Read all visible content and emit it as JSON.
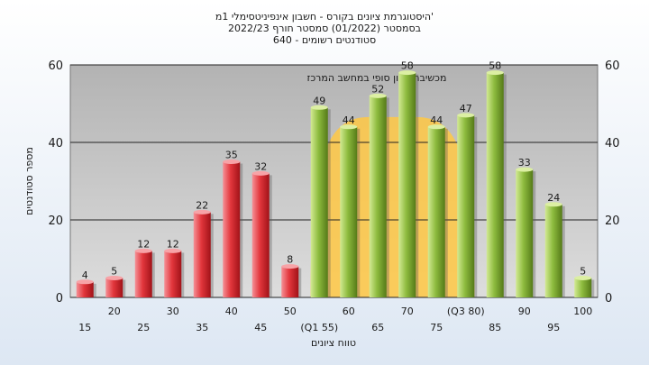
{
  "chart_data": {
    "type": "bar",
    "title_lines": [
      "היסטוגרמת ציונים בקורס - חשבון אינפיניטסימלי 1מ'",
      "בסמסטר  (01/2022)  סמסטר חורף  2022/23",
      "640 - סטודנטים רשומים"
    ],
    "annotation": "מכשיבה: ציון סופי במחשב המרכז",
    "xlabel": "טווח ציונים",
    "ylabel": "מספר סטודנטים",
    "ylim": [
      0,
      60
    ],
    "yticks": [
      0,
      20,
      40,
      60
    ],
    "categories": [
      "15",
      "20",
      "25",
      "30",
      "35",
      "40",
      "45",
      "50",
      "(Q1 55)",
      "60",
      "65",
      "70",
      "75",
      "(Q3 80)",
      "85",
      "90",
      "95",
      "100"
    ],
    "values": [
      4,
      5,
      12,
      12,
      22,
      35,
      32,
      8,
      49,
      44,
      52,
      58,
      44,
      47,
      58,
      33,
      24,
      5
    ],
    "bar_colors": [
      "#e2363c",
      "#e2363c",
      "#e2363c",
      "#e2363c",
      "#e2363c",
      "#e2363c",
      "#e2363c",
      "#e2363c",
      "#8dbb3e",
      "#8dbb3e",
      "#8dbb3e",
      "#8dbb3e",
      "#8dbb3e",
      "#8dbb3e",
      "#8dbb3e",
      "#8dbb3e",
      "#8dbb3e",
      "#8dbb3e"
    ],
    "quartile_band": {
      "from": "(Q1 55)",
      "to": "(Q3 80)",
      "color": "#ffc844"
    },
    "grid": true
  }
}
